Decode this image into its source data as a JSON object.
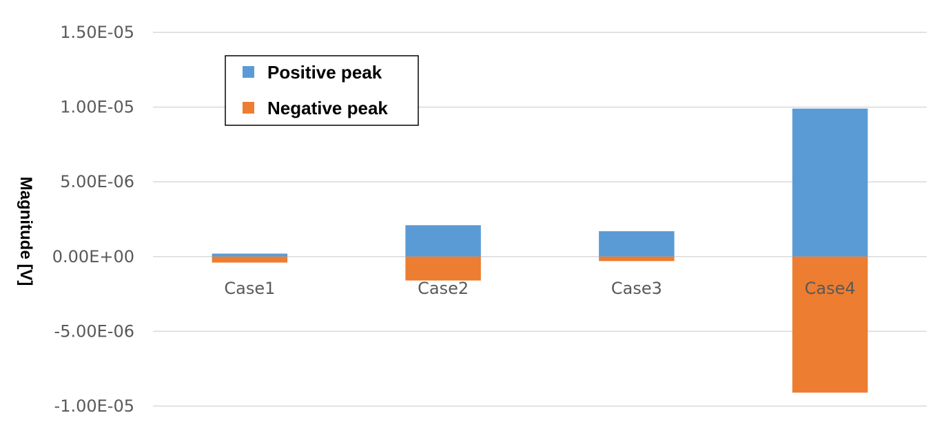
{
  "chart_data": {
    "type": "bar",
    "title": "",
    "xlabel": "",
    "ylabel": "Magnitude [V]",
    "categories": [
      "Case1",
      "Case2",
      "Case3",
      "Case4"
    ],
    "series": [
      {
        "name": "Positive peak",
        "color": "#5B9BD5",
        "values": [
          2e-07,
          2.1e-06,
          1.7e-06,
          9.9e-06
        ]
      },
      {
        "name": "Negative peak",
        "color": "#ED7D31",
        "values": [
          -4e-07,
          -1.6e-06,
          -3e-07,
          -9.1e-06
        ]
      }
    ],
    "ylim": [
      -1e-05,
      1.5e-05
    ],
    "yticks": [
      "-1.00E-05",
      "-5.00E-06",
      "0.00E+00",
      "5.00E-06",
      "1.00E-05",
      "1.50E-05"
    ],
    "ytick_values": [
      -1e-05,
      -5e-06,
      0,
      5e-06,
      1e-05,
      1.5e-05
    ],
    "grid": true,
    "legend_position": "top-left",
    "stacked": true
  }
}
